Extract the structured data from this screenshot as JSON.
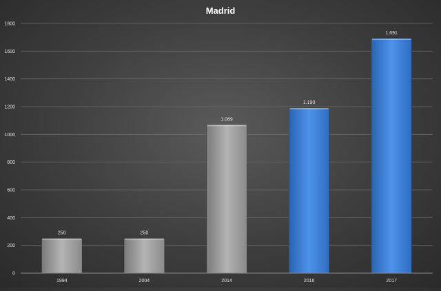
{
  "chart_data": {
    "type": "bar",
    "title": "Madrid",
    "xlabel": "",
    "ylabel": "",
    "categories": [
      "1994",
      "2004",
      "2014",
      "2016",
      "2017"
    ],
    "values": [
      250,
      250,
      1069,
      1190,
      1691
    ],
    "data_labels": [
      "250",
      "250",
      "1.069",
      "1.190",
      "1.691"
    ],
    "bar_colors": [
      "#9a9a9a",
      "#9a9a9a",
      "#9a9a9a",
      "#3b7fd6",
      "#3b7fd6"
    ],
    "ylim": [
      0,
      1800
    ],
    "yticks": [
      0,
      200,
      400,
      600,
      800,
      1000,
      1200,
      1400,
      1600,
      1800
    ],
    "grid": true,
    "legend": "none"
  }
}
